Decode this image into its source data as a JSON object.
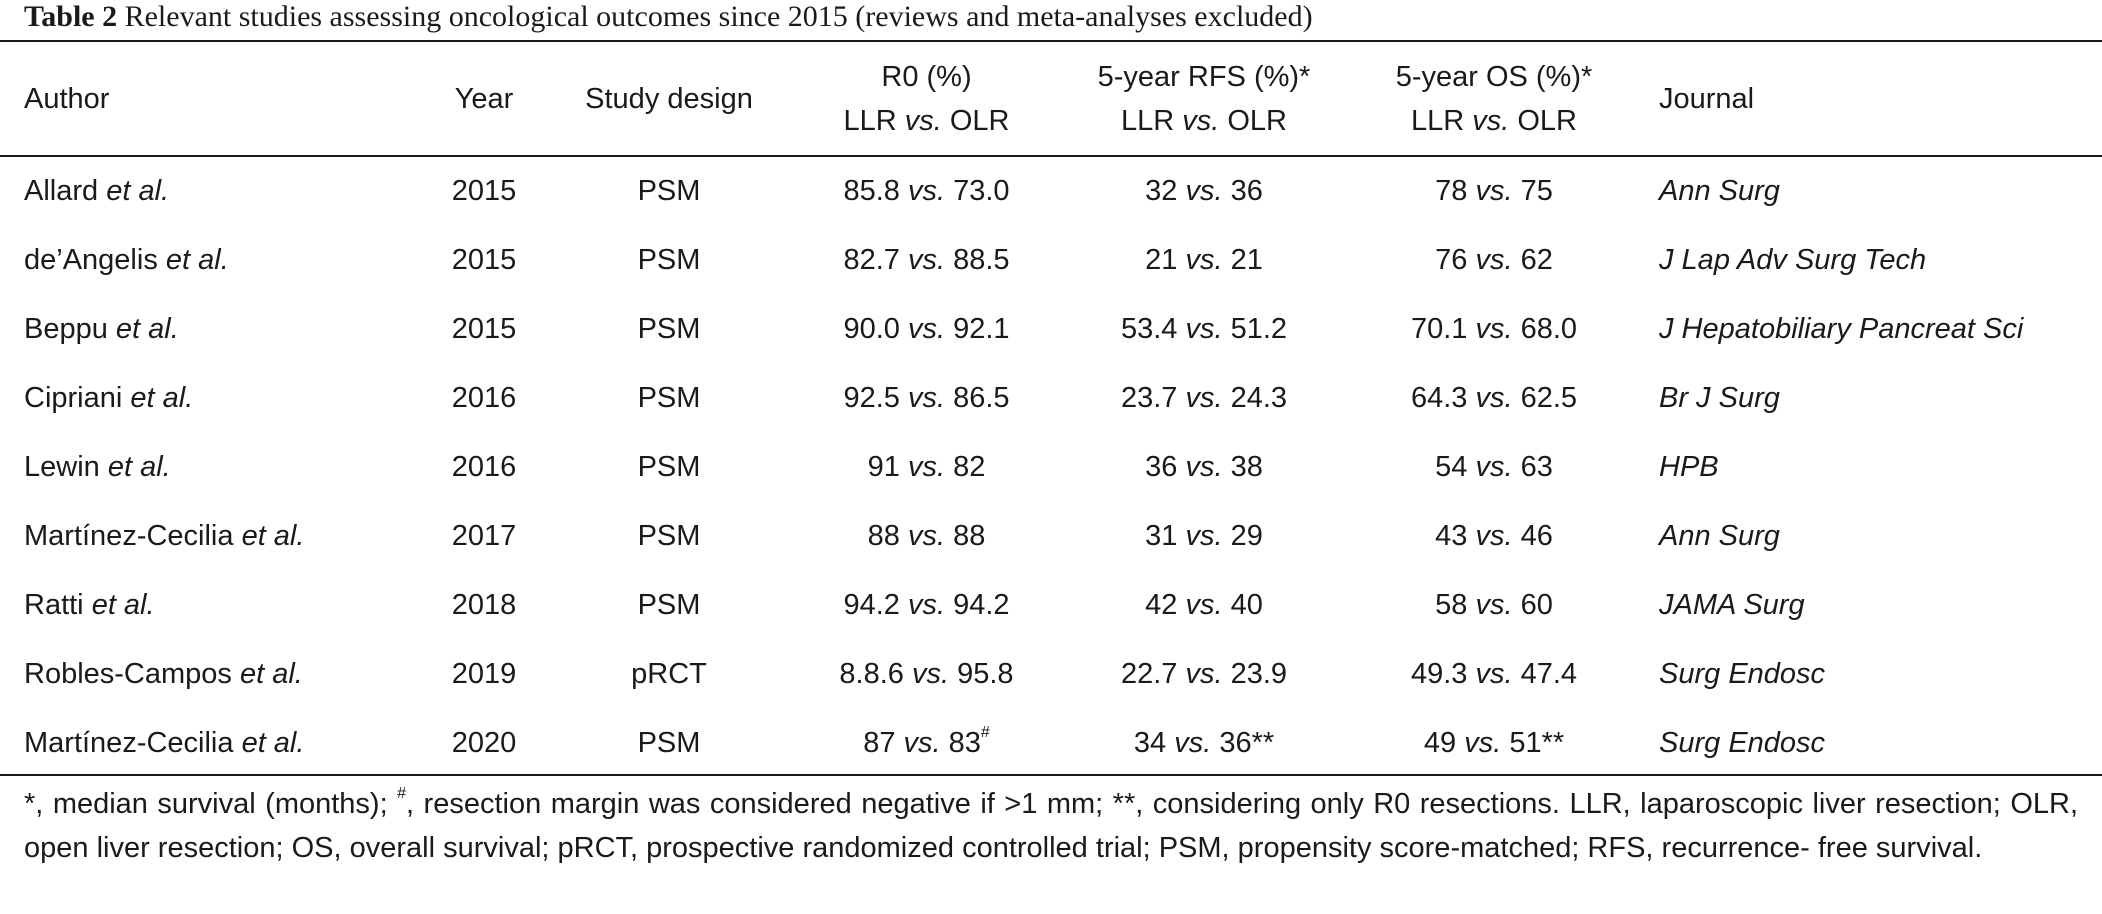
{
  "caption": {
    "label": "Table 2",
    "text": " Relevant studies assessing oncological outcomes since 2015 (reviews and meta-analyses excluded)"
  },
  "header": {
    "author": "Author",
    "year": "Year",
    "design": "Study design",
    "r0_line1": "R0 (%)",
    "rfs_line1": "5-year RFS (%)*",
    "os_line1": "5-year OS (%)*",
    "cmp_left": "LLR ",
    "cmp_vs": "vs.",
    "cmp_right": " OLR",
    "journal": "Journal"
  },
  "vs": "vs.",
  "etal": "et al.",
  "rows": [
    {
      "author": "Allard ",
      "year": "2015",
      "design": "PSM",
      "r0_a": "85.8",
      "r0_b": "73.0",
      "r0_mark": "",
      "rfs_a": "32",
      "rfs_b": "36",
      "os_a": "78",
      "os_b": "75",
      "journal": "Ann Surg"
    },
    {
      "author": "de’Angelis ",
      "year": "2015",
      "design": "PSM",
      "r0_a": "82.7",
      "r0_b": "88.5",
      "r0_mark": "",
      "rfs_a": "21",
      "rfs_b": "21",
      "os_a": "76",
      "os_b": "62",
      "journal": "J Lap Adv Surg Tech"
    },
    {
      "author": "Beppu ",
      "year": "2015",
      "design": "PSM",
      "r0_a": "90.0",
      "r0_b": "92.1",
      "r0_mark": "",
      "rfs_a": "53.4",
      "rfs_b": "51.2",
      "os_a": "70.1",
      "os_b": "68.0",
      "journal": "J Hepatobiliary Pancreat Sci"
    },
    {
      "author": "Cipriani ",
      "year": "2016",
      "design": "PSM",
      "r0_a": "92.5",
      "r0_b": "86.5",
      "r0_mark": "",
      "rfs_a": "23.7",
      "rfs_b": "24.3",
      "os_a": "64.3",
      "os_b": "62.5",
      "journal": "Br J Surg"
    },
    {
      "author": "Lewin ",
      "year": "2016",
      "design": "PSM",
      "r0_a": "91",
      "r0_b": "82",
      "r0_mark": "",
      "rfs_a": "36",
      "rfs_b": "38",
      "os_a": "54",
      "os_b": "63",
      "journal": "HPB"
    },
    {
      "author": "Martínez-Cecilia ",
      "year": "2017",
      "design": "PSM",
      "r0_a": "88",
      "r0_b": "88",
      "r0_mark": "",
      "rfs_a": "31",
      "rfs_b": "29",
      "os_a": "43",
      "os_b": "46",
      "journal": "Ann Surg"
    },
    {
      "author": "Ratti ",
      "year": "2018",
      "design": "PSM",
      "r0_a": "94.2",
      "r0_b": "94.2",
      "r0_mark": "",
      "rfs_a": "42",
      "rfs_b": "40",
      "os_a": "58",
      "os_b": "60",
      "journal": "JAMA Surg"
    },
    {
      "author": "Robles-Campos ",
      "year": "2019",
      "design": "pRCT",
      "r0_a": "8.8.6",
      "r0_b": "95.8",
      "r0_mark": "",
      "rfs_a": "22.7",
      "rfs_b": "23.9",
      "os_a": "49.3",
      "os_b": "47.4",
      "journal": "Surg Endosc"
    },
    {
      "author": "Martínez-Cecilia ",
      "year": "2020",
      "design": "PSM",
      "r0_a": "87",
      "r0_b": "83",
      "r0_mark": "#",
      "rfs_a": "34",
      "rfs_b": "36**",
      "os_a": "49",
      "os_b": "51**",
      "journal": "Surg Endosc"
    }
  ],
  "footnote": {
    "p1": "*, median survival (months); ",
    "mark": "#",
    "p2": ", resection margin was considered negative if >1 mm; **, considering only R0 resections. LLR, laparoscopic liver resection; OLR, open liver resection; OS, overall survival; pRCT, prospective randomized controlled trial; PSM, propensity score-matched; RFS, recurrence- free survival."
  }
}
